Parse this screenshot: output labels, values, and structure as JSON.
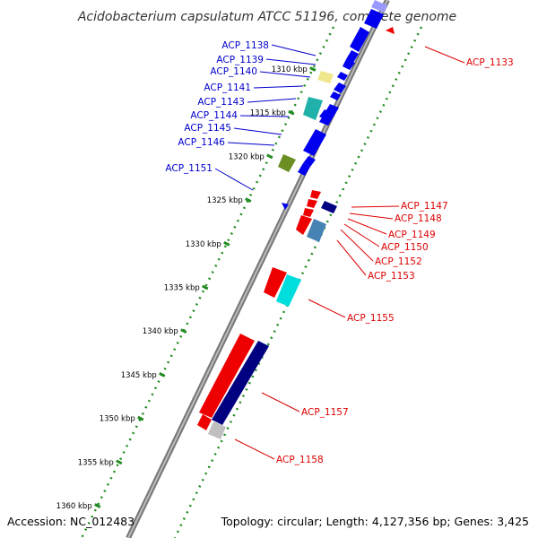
{
  "title": "Acidobacterium capsulatum ATCC 51196, complete genome",
  "accession": "Accession: NC_012483",
  "topology": "Topology: circular; Length: 4,127,356 bp; Genes: 3,425",
  "colors": {
    "forward_strand": "#0000ee",
    "reverse_strand": "#ee0000",
    "tick": "#228b22",
    "backbone": "#808080",
    "left_label": "#0000cc",
    "right_label": "#dd0000"
  },
  "ticks": [
    {
      "label": "1310 kbp",
      "kbp": 1310
    },
    {
      "label": "1315 kbp",
      "kbp": 1315
    },
    {
      "label": "1320 kbp",
      "kbp": 1320
    },
    {
      "label": "1325 kbp",
      "kbp": 1325
    },
    {
      "label": "1330 kbp",
      "kbp": 1330
    },
    {
      "label": "1335 kbp",
      "kbp": 1335
    },
    {
      "label": "1340 kbp",
      "kbp": 1340
    },
    {
      "label": "1345 kbp",
      "kbp": 1345
    },
    {
      "label": "1350 kbp",
      "kbp": 1350
    },
    {
      "label": "1355 kbp",
      "kbp": 1355
    },
    {
      "label": "1360 kbp",
      "kbp": 1360
    }
  ],
  "left_labels": [
    "ACP_1138",
    "ACP_1139",
    "ACP_1140",
    "ACP_1141",
    "ACP_1143",
    "ACP_1144",
    "ACP_1145",
    "ACP_1146",
    "ACP_1151"
  ],
  "right_labels": [
    "ACP_1133",
    "ACP_1147",
    "ACP_1148",
    "ACP_1149",
    "ACP_1150",
    "ACP_1152",
    "ACP_1153",
    "ACP_1155",
    "ACP_1157",
    "ACP_1158"
  ]
}
